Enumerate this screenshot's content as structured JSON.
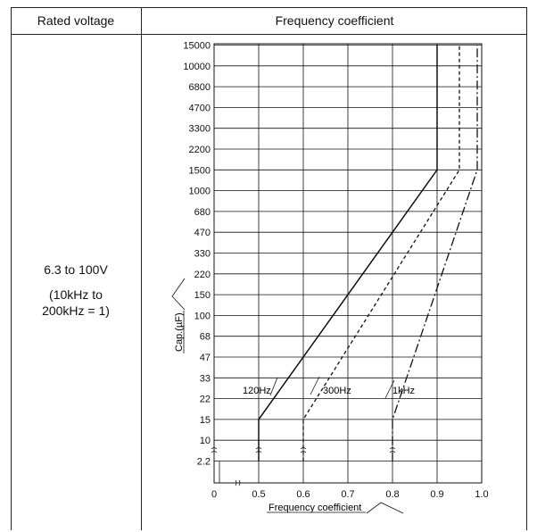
{
  "table": {
    "header_left": "Rated voltage",
    "header_right": "Frequency coefficient",
    "voltage_line1": "6.3 to 100V",
    "voltage_line2": "(10kHz to",
    "voltage_line3": "200kHz = 1)"
  },
  "chart_data": {
    "type": "line",
    "xlabel": "Frequency coefficient",
    "ylabel": "Cap.(µF)",
    "x_ticks": [
      "0",
      "0.5",
      "0.6",
      "0.7",
      "0.8",
      "0.9",
      "1.0"
    ],
    "x_tick_values": [
      0,
      0.5,
      0.6,
      0.7,
      0.8,
      0.9,
      1.0
    ],
    "y_ticks": [
      "2.2",
      "10",
      "15",
      "22",
      "33",
      "47",
      "68",
      "100",
      "150",
      "220",
      "330",
      "470",
      "680",
      "1000",
      "1500",
      "2200",
      "3300",
      "4700",
      "6800",
      "10000",
      "15000"
    ],
    "x_axis_break": true,
    "y_axis_break": true,
    "grid": true,
    "series": [
      {
        "name": "120Hz",
        "style": "solid",
        "points": [
          [
            0.5,
            2.2
          ],
          [
            0.5,
            15
          ],
          [
            0.9,
            1500
          ],
          [
            0.9,
            15000
          ]
        ]
      },
      {
        "name": "300Hz",
        "style": "dashed",
        "points": [
          [
            0.6,
            2.2
          ],
          [
            0.6,
            15
          ],
          [
            0.95,
            1500
          ],
          [
            0.95,
            15000
          ]
        ]
      },
      {
        "name": "1kHz",
        "style": "dash-dot",
        "points": [
          [
            0.8,
            2.2
          ],
          [
            0.8,
            15
          ],
          [
            0.99,
            1500
          ],
          [
            0.99,
            15000
          ]
        ]
      }
    ]
  }
}
